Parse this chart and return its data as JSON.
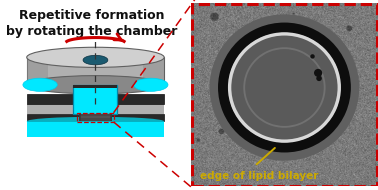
{
  "title_line1": "Repetitive formation",
  "title_line2": "by rotating the chamber",
  "title_fontsize": 9.0,
  "title_color": "#111111",
  "bg_color": "#ffffff",
  "arrow_color": "#cc0000",
  "dashed_line_color": "#cc0000",
  "right_border_color": "#cc0000",
  "annotation_color": "#ccaa00",
  "annotation_text": "edge of lipid bilayer",
  "annotation_fontsize": 7.5,
  "chamber_gray_light": "#d0d0d0",
  "chamber_gray_mid": "#b0b0b0",
  "chamber_gray_dark": "#888888",
  "chamber_bg": "#c0c8c8",
  "disk_dark": "#606060",
  "black_strip": "#282828",
  "cyan_bright": "#00e8ff",
  "cyan_medium": "#00ccee",
  "teal_oval": "#1a5a70"
}
